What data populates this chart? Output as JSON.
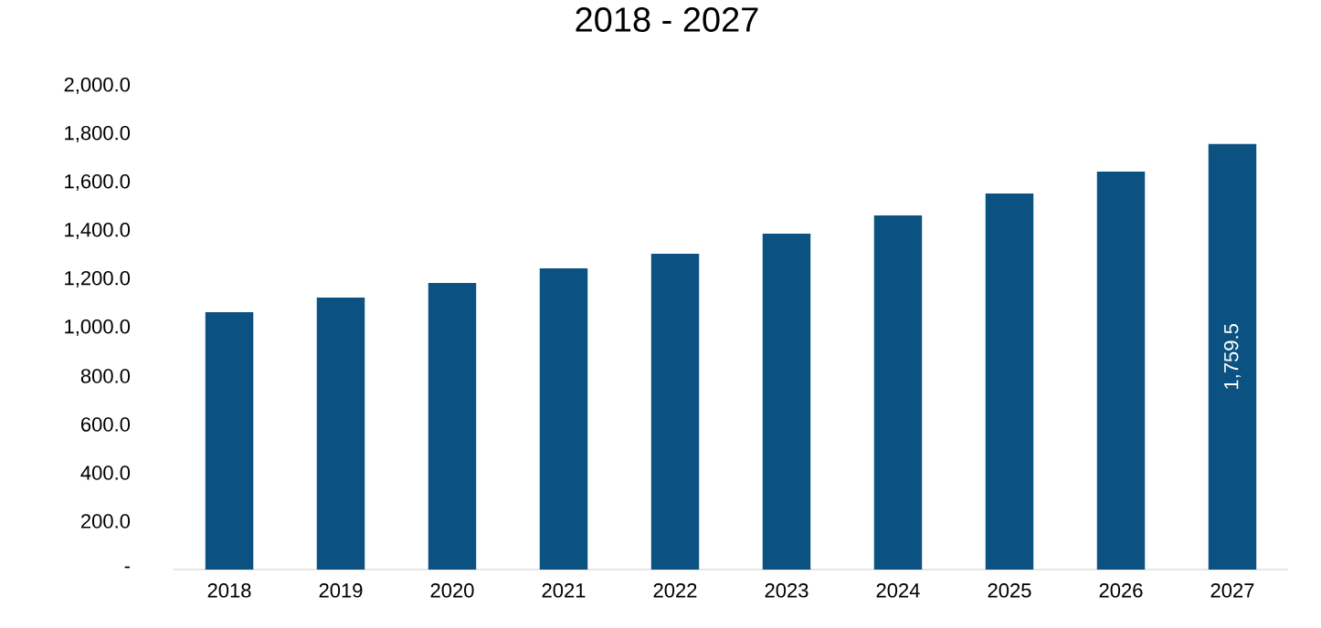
{
  "chart_data": {
    "type": "bar",
    "title": "2018 - 2027",
    "categories": [
      "2018",
      "2019",
      "2020",
      "2021",
      "2022",
      "2023",
      "2024",
      "2025",
      "2026",
      "2027"
    ],
    "values": [
      1064,
      1124,
      1185,
      1245,
      1306,
      1389,
      1464,
      1555,
      1645,
      1759.5
    ],
    "value_labels": [
      null,
      null,
      null,
      null,
      null,
      null,
      null,
      null,
      null,
      "1,759.5"
    ],
    "color": "#0b5282",
    "ylim": [
      0,
      2000
    ],
    "yticks": [
      {
        "value": 0,
        "label": "-"
      },
      {
        "value": 200,
        "label": "200.0"
      },
      {
        "value": 400,
        "label": "400.0"
      },
      {
        "value": 600,
        "label": "600.0"
      },
      {
        "value": 800,
        "label": "800.0"
      },
      {
        "value": 1000,
        "label": "1,000.0"
      },
      {
        "value": 1200,
        "label": "1,200.0"
      },
      {
        "value": 1400,
        "label": "1,400.0"
      },
      {
        "value": 1600,
        "label": "1,600.0"
      },
      {
        "value": 1800,
        "label": "1,800.0"
      },
      {
        "value": 2000,
        "label": "2,000.0"
      }
    ]
  }
}
